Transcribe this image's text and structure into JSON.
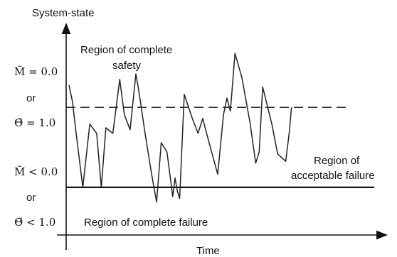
{
  "chart_data": {
    "type": "line",
    "ylabel": "System-state",
    "xlabel": "Time",
    "xlim": [
      0,
      100
    ],
    "ylim": [
      0,
      100
    ],
    "thresholds": {
      "safety": {
        "value": 69,
        "style": "dashed"
      },
      "failure": {
        "value": 26,
        "style": "solid"
      }
    },
    "regions": {
      "complete_safety": [
        "Region of complete",
        "safety"
      ],
      "acceptable_failure": [
        "Region of",
        "acceptable failure"
      ],
      "complete_failure": "Region of complete failure"
    },
    "y_annotations": {
      "upper": [
        "M̃ = 0.0",
        "or",
        "Θ̃ = 1.0"
      ],
      "lower": [
        "M̃ < 0.0",
        "or",
        "Θ̃ < 1.0"
      ]
    },
    "series": [
      {
        "x": [
          0,
          1.5,
          3,
          6,
          9,
          12,
          14,
          16,
          19,
          22,
          24,
          26.5,
          29,
          30,
          31,
          33,
          36,
          38,
          40,
          42.5,
          45,
          46,
          47,
          48,
          50,
          53.5,
          56,
          58,
          61,
          64.5,
          67,
          68.5,
          70,
          72,
          75,
          78.5,
          81,
          82.5,
          84,
          86,
          88,
          90.5,
          94,
          95.5,
          96.5
        ],
        "y": [
          81,
          72,
          56,
          26,
          60,
          55,
          26,
          58,
          55,
          84,
          65,
          57,
          87,
          80,
          72,
          55,
          32,
          18,
          50,
          45,
          21,
          31,
          24,
          20,
          76,
          63,
          55,
          63,
          49,
          33,
          65,
          74,
          67,
          98,
          85,
          61,
          39,
          45,
          80,
          70,
          60,
          44,
          40,
          55,
          69
        ]
      }
    ]
  }
}
